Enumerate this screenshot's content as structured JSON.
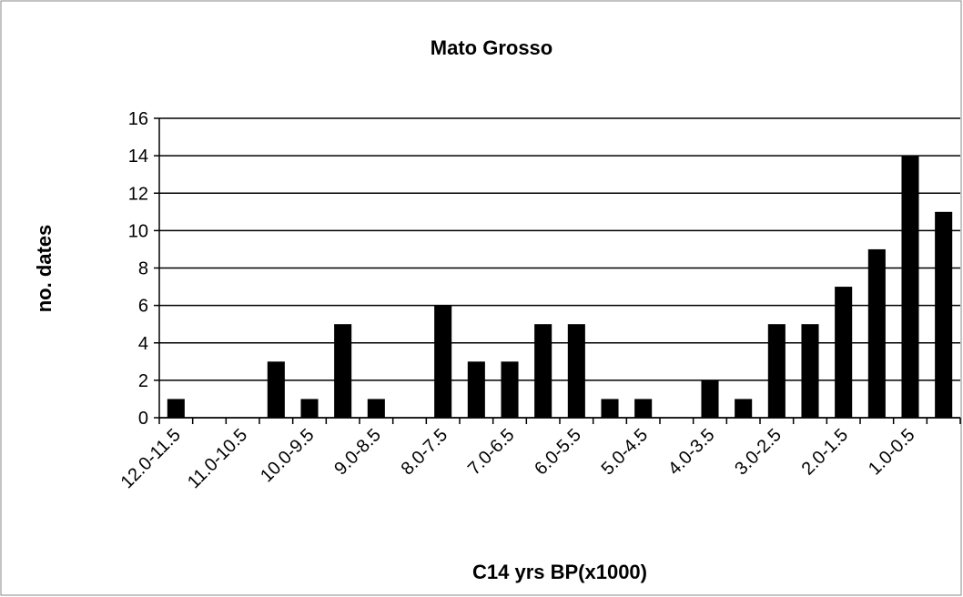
{
  "chart_data": {
    "type": "bar",
    "title": "Mato Grosso",
    "x_label": "C14 yrs BP(x1000)",
    "y_label": "no. dates",
    "categories": [
      "12.0-11.5",
      null,
      "11.0-10.5",
      null,
      "10.0-9.5",
      null,
      "9.0-8.5",
      null,
      "8.0-7.5",
      null,
      "7.0-6.5",
      null,
      "6.0-5.5",
      null,
      "5.0-4.5",
      null,
      "4.0-3.5",
      null,
      "3.0-2.5",
      null,
      "2.0-1.5",
      null,
      "1.0-0.5",
      null
    ],
    "values": [
      1,
      0,
      0,
      3,
      1,
      5,
      1,
      0,
      6,
      3,
      3,
      5,
      5,
      1,
      1,
      0,
      2,
      1,
      5,
      5,
      7,
      9,
      14,
      11
    ],
    "color": "#000000",
    "ylim": [
      0,
      16
    ],
    "yticks": [
      0,
      2,
      4,
      6,
      8,
      10,
      12,
      14,
      16
    ],
    "grid": true
  }
}
